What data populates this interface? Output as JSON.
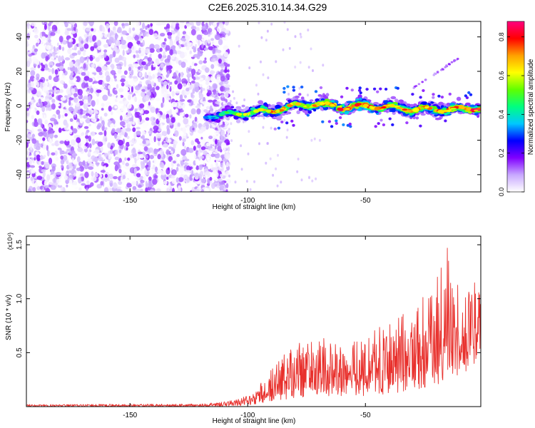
{
  "title": "C2E6.2025.310.14.34.G29",
  "chart_data": [
    {
      "type": "heatmap",
      "name": "spectrogram",
      "xlabel": "Height of straight line (km)",
      "ylabel": "Frequency (Hz)",
      "xlim": [
        -194,
        -1
      ],
      "ylim": [
        -50,
        49
      ],
      "xticks": [
        -150,
        -100,
        -50
      ],
      "yticks": [
        -40,
        -20,
        0,
        20,
        40
      ],
      "xtick_labels": [
        "-150",
        "-100",
        "-50"
      ],
      "ytick_labels": [
        "-40",
        "-20",
        "0",
        "20",
        "40"
      ],
      "colorbar": {
        "label": "Normalized spectral amplitude",
        "range": [
          0,
          0.88
        ],
        "ticks": [
          0.0,
          0.2,
          0.4,
          0.6,
          0.8
        ],
        "tick_labels": [
          "0.0",
          "0.2",
          "0.4",
          "0.6",
          "0.8"
        ],
        "colors": [
          "#ffffff",
          "#c8a8ff",
          "#8000ff",
          "#0000ff",
          "#00c8ff",
          "#00ff80",
          "#60ff00",
          "#ffff00",
          "#ffa000",
          "#ff0000",
          "#ff0080"
        ]
      },
      "noise_region_x": [
        -194,
        -108
      ],
      "ridge": {
        "x": [
          -118,
          -110,
          -100,
          -90,
          -80,
          -70,
          -60,
          -50,
          -40,
          -30,
          -20,
          -10,
          -1
        ],
        "frequency": [
          -6,
          -5,
          -4,
          -3,
          0,
          1,
          -1,
          0,
          -1,
          -2,
          -2,
          -2,
          -1
        ],
        "amplitude": [
          0.3,
          0.45,
          0.6,
          0.7,
          0.65,
          0.75,
          0.85,
          0.8,
          0.7,
          0.75,
          0.7,
          0.8,
          0.85
        ]
      },
      "faint_line": {
        "x": [
          -30,
          -10
        ],
        "frequency": [
          10,
          28
        ]
      }
    },
    {
      "type": "line",
      "name": "snr",
      "xlabel": "Height of straight line (km)",
      "ylabel": "SNR (10 * v/v)",
      "multiplier": "(x10⁴)",
      "xlim": [
        -194,
        -1
      ],
      "ylim": [
        0,
        1.58
      ],
      "xticks": [
        -150,
        -100,
        -50
      ],
      "yticks": [
        0.5,
        1.0,
        1.5
      ],
      "xtick_labels": [
        "-150",
        "-100",
        "-50"
      ],
      "ytick_labels": [
        "0.5",
        "1.0",
        "1.5"
      ],
      "color": "#e8302c",
      "envelope": {
        "x": [
          -194,
          -120,
          -108,
          -100,
          -95,
          -90,
          -80,
          -70,
          -60,
          -50,
          -40,
          -30,
          -20,
          -15,
          -10,
          -5,
          -1
        ],
        "low": [
          0.0,
          0.0,
          0.005,
          0.01,
          0.03,
          0.05,
          0.08,
          0.1,
          0.1,
          0.1,
          0.12,
          0.15,
          0.2,
          0.25,
          0.3,
          0.35,
          0.5
        ],
        "high": [
          0.02,
          0.025,
          0.05,
          0.1,
          0.2,
          0.35,
          0.6,
          0.65,
          0.6,
          0.65,
          0.8,
          0.9,
          1.3,
          1.5,
          1.1,
          1.25,
          1.05
        ]
      }
    }
  ]
}
